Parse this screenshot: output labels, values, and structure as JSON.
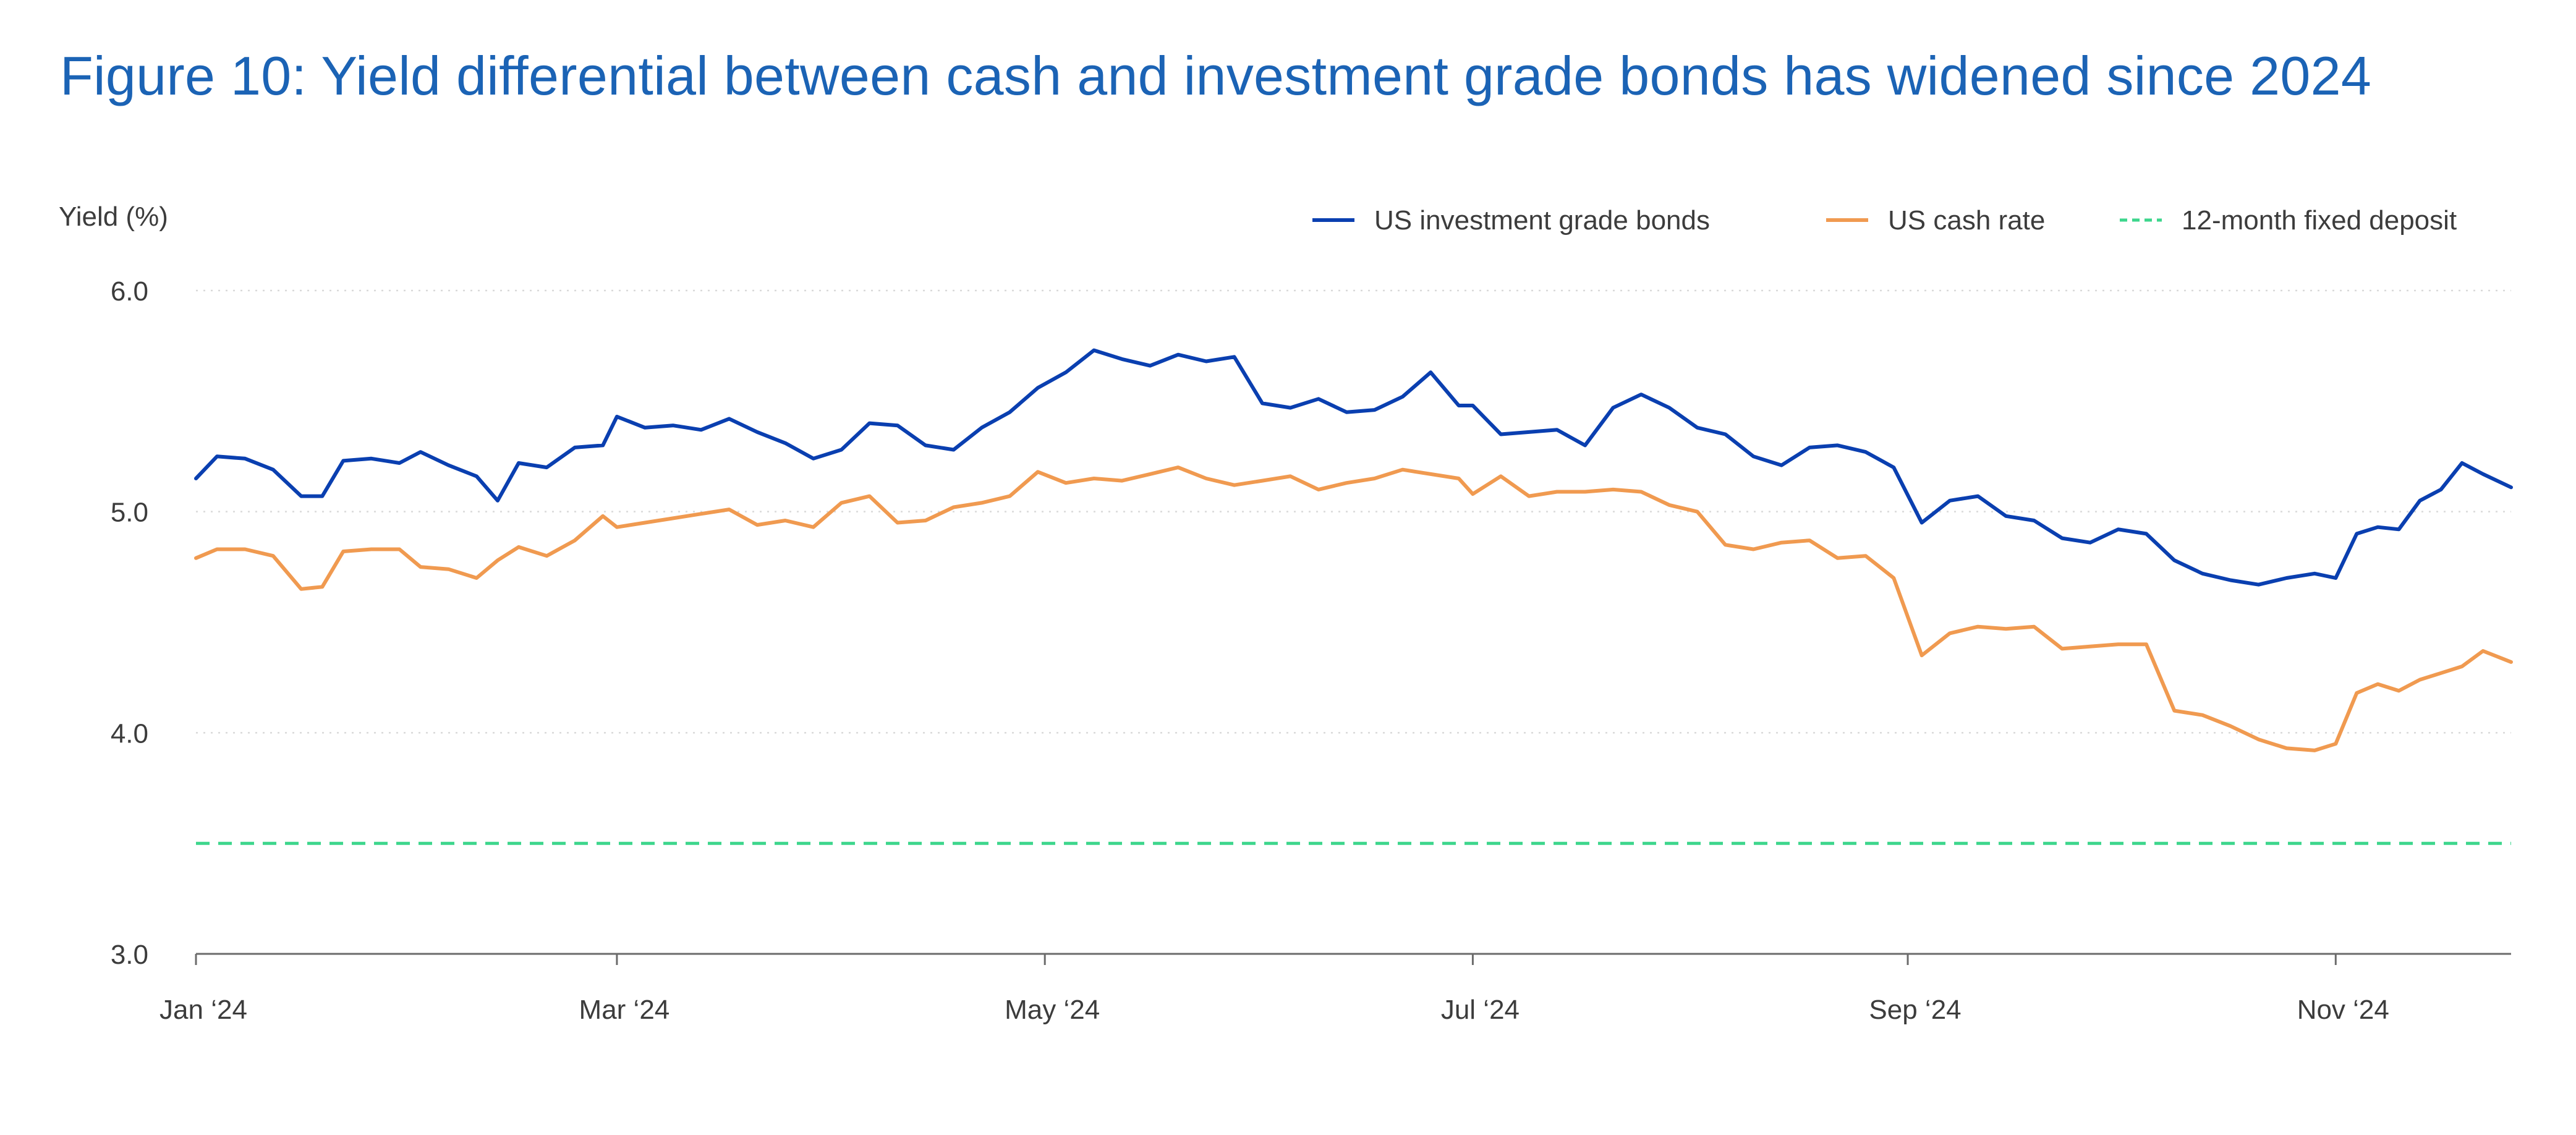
{
  "header": {
    "title": "Figure 10: Yield differential between cash and investment grade bonds has widened since 2024"
  },
  "chart_data": {
    "type": "line",
    "ylabel": "Yield (%)",
    "xlabel": "",
    "ylim": [
      3.0,
      6.0
    ],
    "yticks": [
      3.0,
      4.0,
      5.0,
      6.0
    ],
    "ytick_labels": [
      "3.0",
      "4.0",
      "5.0",
      "6.0"
    ],
    "xlim": [
      "2024-01-01",
      "2024-11-26"
    ],
    "xticks": [
      "2024-01-01",
      "2024-03-01",
      "2024-05-01",
      "2024-07-01",
      "2024-09-01",
      "2024-11-01"
    ],
    "xtick_labels": [
      "Jan ‘24",
      "Mar ‘24",
      "May ‘24",
      "Jul ‘24",
      "Sep ‘24",
      "Nov ‘24"
    ],
    "grid": "horizontal dotted",
    "legend_position": "top-right",
    "series": [
      {
        "name": "US investment grade bonds",
        "color": "#0a3fb0",
        "style": "solid",
        "points": [
          [
            "2024-01-01",
            5.15
          ],
          [
            "2024-01-04",
            5.25
          ],
          [
            "2024-01-08",
            5.24
          ],
          [
            "2024-01-12",
            5.19
          ],
          [
            "2024-01-16",
            5.07
          ],
          [
            "2024-01-19",
            5.07
          ],
          [
            "2024-01-22",
            5.23
          ],
          [
            "2024-01-26",
            5.24
          ],
          [
            "2024-01-30",
            5.22
          ],
          [
            "2024-02-02",
            5.27
          ],
          [
            "2024-02-06",
            5.21
          ],
          [
            "2024-02-10",
            5.16
          ],
          [
            "2024-02-13",
            5.05
          ],
          [
            "2024-02-16",
            5.22
          ],
          [
            "2024-02-20",
            5.2
          ],
          [
            "2024-02-24",
            5.29
          ],
          [
            "2024-02-28",
            5.3
          ],
          [
            "2024-03-01",
            5.43
          ],
          [
            "2024-03-05",
            5.38
          ],
          [
            "2024-03-09",
            5.39
          ],
          [
            "2024-03-13",
            5.37
          ],
          [
            "2024-03-17",
            5.42
          ],
          [
            "2024-03-21",
            5.36
          ],
          [
            "2024-03-25",
            5.31
          ],
          [
            "2024-03-29",
            5.24
          ],
          [
            "2024-04-02",
            5.28
          ],
          [
            "2024-04-06",
            5.4
          ],
          [
            "2024-04-10",
            5.39
          ],
          [
            "2024-04-14",
            5.3
          ],
          [
            "2024-04-18",
            5.28
          ],
          [
            "2024-04-22",
            5.38
          ],
          [
            "2024-04-26",
            5.45
          ],
          [
            "2024-04-30",
            5.56
          ],
          [
            "2024-05-04",
            5.63
          ],
          [
            "2024-05-08",
            5.73
          ],
          [
            "2024-05-12",
            5.69
          ],
          [
            "2024-05-16",
            5.66
          ],
          [
            "2024-05-20",
            5.71
          ],
          [
            "2024-05-24",
            5.68
          ],
          [
            "2024-05-28",
            5.7
          ],
          [
            "2024-06-01",
            5.49
          ],
          [
            "2024-06-05",
            5.47
          ],
          [
            "2024-06-09",
            5.51
          ],
          [
            "2024-06-13",
            5.45
          ],
          [
            "2024-06-17",
            5.46
          ],
          [
            "2024-06-21",
            5.52
          ],
          [
            "2024-06-25",
            5.63
          ],
          [
            "2024-06-29",
            5.48
          ],
          [
            "2024-07-01",
            5.48
          ],
          [
            "2024-07-05",
            5.35
          ],
          [
            "2024-07-09",
            5.36
          ],
          [
            "2024-07-13",
            5.37
          ],
          [
            "2024-07-17",
            5.3
          ],
          [
            "2024-07-21",
            5.47
          ],
          [
            "2024-07-25",
            5.53
          ],
          [
            "2024-07-29",
            5.47
          ],
          [
            "2024-08-02",
            5.38
          ],
          [
            "2024-08-06",
            5.35
          ],
          [
            "2024-08-10",
            5.25
          ],
          [
            "2024-08-14",
            5.21
          ],
          [
            "2024-08-18",
            5.29
          ],
          [
            "2024-08-22",
            5.3
          ],
          [
            "2024-08-26",
            5.27
          ],
          [
            "2024-08-30",
            5.2
          ],
          [
            "2024-09-03",
            4.95
          ],
          [
            "2024-09-07",
            5.05
          ],
          [
            "2024-09-11",
            5.07
          ],
          [
            "2024-09-15",
            4.98
          ],
          [
            "2024-09-19",
            4.96
          ],
          [
            "2024-09-23",
            4.88
          ],
          [
            "2024-09-27",
            4.86
          ],
          [
            "2024-10-01",
            4.92
          ],
          [
            "2024-10-05",
            4.9
          ],
          [
            "2024-10-09",
            4.78
          ],
          [
            "2024-10-13",
            4.72
          ],
          [
            "2024-10-17",
            4.69
          ],
          [
            "2024-10-21",
            4.67
          ],
          [
            "2024-10-25",
            4.7
          ],
          [
            "2024-10-29",
            4.72
          ],
          [
            "2024-11-01",
            4.7
          ],
          [
            "2024-11-04",
            4.9
          ],
          [
            "2024-11-07",
            4.93
          ],
          [
            "2024-11-10",
            4.92
          ],
          [
            "2024-11-13",
            5.05
          ],
          [
            "2024-11-16",
            5.1
          ],
          [
            "2024-11-19",
            5.22
          ],
          [
            "2024-11-22",
            5.17
          ],
          [
            "2024-11-26",
            5.11
          ]
        ]
      },
      {
        "name": "US cash rate",
        "color": "#f09a50",
        "style": "solid",
        "points": [
          [
            "2024-01-01",
            4.79
          ],
          [
            "2024-01-04",
            4.83
          ],
          [
            "2024-01-08",
            4.83
          ],
          [
            "2024-01-12",
            4.8
          ],
          [
            "2024-01-16",
            4.65
          ],
          [
            "2024-01-19",
            4.66
          ],
          [
            "2024-01-22",
            4.82
          ],
          [
            "2024-01-26",
            4.83
          ],
          [
            "2024-01-30",
            4.83
          ],
          [
            "2024-02-02",
            4.75
          ],
          [
            "2024-02-06",
            4.74
          ],
          [
            "2024-02-10",
            4.7
          ],
          [
            "2024-02-13",
            4.78
          ],
          [
            "2024-02-16",
            4.84
          ],
          [
            "2024-02-20",
            4.8
          ],
          [
            "2024-02-24",
            4.87
          ],
          [
            "2024-02-28",
            4.98
          ],
          [
            "2024-03-01",
            4.93
          ],
          [
            "2024-03-05",
            4.95
          ],
          [
            "2024-03-09",
            4.97
          ],
          [
            "2024-03-13",
            4.99
          ],
          [
            "2024-03-17",
            5.01
          ],
          [
            "2024-03-21",
            4.94
          ],
          [
            "2024-03-25",
            4.96
          ],
          [
            "2024-03-29",
            4.93
          ],
          [
            "2024-04-02",
            5.04
          ],
          [
            "2024-04-06",
            5.07
          ],
          [
            "2024-04-10",
            4.95
          ],
          [
            "2024-04-14",
            4.96
          ],
          [
            "2024-04-18",
            5.02
          ],
          [
            "2024-04-22",
            5.04
          ],
          [
            "2024-04-26",
            5.07
          ],
          [
            "2024-04-30",
            5.18
          ],
          [
            "2024-05-04",
            5.13
          ],
          [
            "2024-05-08",
            5.15
          ],
          [
            "2024-05-12",
            5.14
          ],
          [
            "2024-05-16",
            5.17
          ],
          [
            "2024-05-20",
            5.2
          ],
          [
            "2024-05-24",
            5.15
          ],
          [
            "2024-05-28",
            5.12
          ],
          [
            "2024-06-01",
            5.14
          ],
          [
            "2024-06-05",
            5.16
          ],
          [
            "2024-06-09",
            5.1
          ],
          [
            "2024-06-13",
            5.13
          ],
          [
            "2024-06-17",
            5.15
          ],
          [
            "2024-06-21",
            5.19
          ],
          [
            "2024-06-25",
            5.17
          ],
          [
            "2024-06-29",
            5.15
          ],
          [
            "2024-07-01",
            5.08
          ],
          [
            "2024-07-05",
            5.16
          ],
          [
            "2024-07-09",
            5.07
          ],
          [
            "2024-07-13",
            5.09
          ],
          [
            "2024-07-17",
            5.09
          ],
          [
            "2024-07-21",
            5.1
          ],
          [
            "2024-07-25",
            5.09
          ],
          [
            "2024-07-29",
            5.03
          ],
          [
            "2024-08-02",
            5.0
          ],
          [
            "2024-08-06",
            4.85
          ],
          [
            "2024-08-10",
            4.83
          ],
          [
            "2024-08-14",
            4.86
          ],
          [
            "2024-08-18",
            4.87
          ],
          [
            "2024-08-22",
            4.79
          ],
          [
            "2024-08-26",
            4.8
          ],
          [
            "2024-08-30",
            4.7
          ],
          [
            "2024-09-03",
            4.35
          ],
          [
            "2024-09-07",
            4.45
          ],
          [
            "2024-09-11",
            4.48
          ],
          [
            "2024-09-15",
            4.47
          ],
          [
            "2024-09-19",
            4.48
          ],
          [
            "2024-09-23",
            4.38
          ],
          [
            "2024-09-27",
            4.39
          ],
          [
            "2024-10-01",
            4.4
          ],
          [
            "2024-10-05",
            4.4
          ],
          [
            "2024-10-09",
            4.1
          ],
          [
            "2024-10-13",
            4.08
          ],
          [
            "2024-10-17",
            4.03
          ],
          [
            "2024-10-21",
            3.97
          ],
          [
            "2024-10-25",
            3.93
          ],
          [
            "2024-10-29",
            3.92
          ],
          [
            "2024-11-01",
            3.95
          ],
          [
            "2024-11-04",
            4.18
          ],
          [
            "2024-11-07",
            4.22
          ],
          [
            "2024-11-10",
            4.19
          ],
          [
            "2024-11-13",
            4.24
          ],
          [
            "2024-11-16",
            4.27
          ],
          [
            "2024-11-19",
            4.3
          ],
          [
            "2024-11-22",
            4.37
          ],
          [
            "2024-11-26",
            4.32
          ]
        ]
      },
      {
        "name": "12-month fixed deposit",
        "color": "#3dd68c",
        "style": "dashed",
        "points": [
          [
            "2024-01-01",
            3.5
          ],
          [
            "2024-11-26",
            3.5
          ]
        ]
      }
    ]
  }
}
